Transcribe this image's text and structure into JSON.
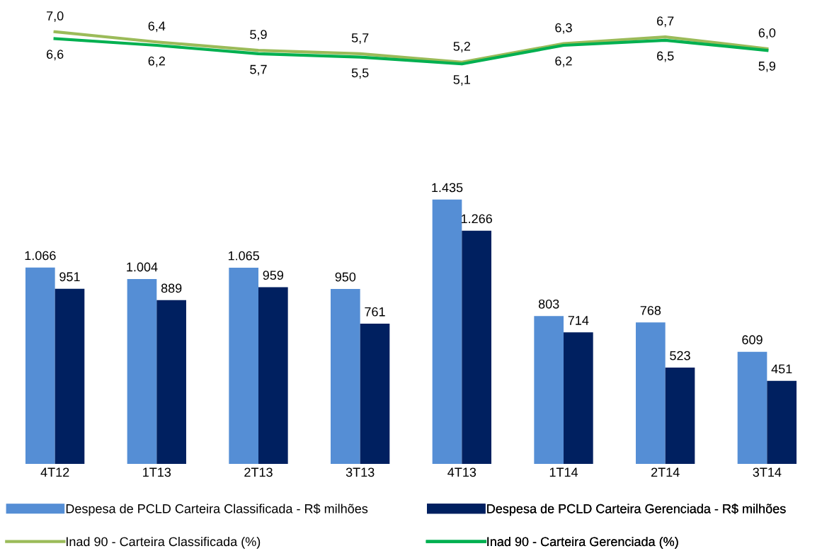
{
  "chart_data": [
    {
      "type": "line",
      "categories": [
        null,
        null,
        null,
        null,
        null,
        null,
        null,
        null
      ],
      "series": [
        {
          "name": "Inad 90 - Carteira Classificada (%)",
          "color": "#9bbb59",
          "values": [
            7.0,
            6.4,
            5.9,
            5.7,
            5.2,
            6.3,
            6.7,
            6.0
          ],
          "value_labels": [
            "7,0",
            "6,4",
            "5,9",
            "5,7",
            "5,2",
            "6,3",
            "6,7",
            "6,0"
          ]
        },
        {
          "name": "Inad 90 - Carteira Gerenciada (%)",
          "color": "#00b050",
          "values": [
            6.6,
            6.2,
            5.7,
            5.5,
            5.1,
            6.2,
            6.5,
            5.9
          ],
          "value_labels": [
            "6,6",
            "6,2",
            "5,7",
            "5,5",
            "5,1",
            "6,2",
            "6,5",
            "5,9"
          ]
        }
      ],
      "tick_labels": false,
      "grid": false,
      "legend": "bottom",
      "marker": "none",
      "line_style": "solid"
    },
    {
      "type": "bar",
      "categories": [
        "4T12",
        "1T13",
        "2T13",
        "3T13",
        "4T13",
        "1T14",
        "2T14",
        "3T14"
      ],
      "series": [
        {
          "name": "Despesa de PCLD Carteira Classificada - R$ milhões",
          "color": "#558ed5",
          "values": [
            1066,
            1004,
            1065,
            950,
            1435,
            803,
            768,
            609
          ],
          "value_labels": [
            "1.066",
            "1.004",
            "1.065",
            "950",
            "1.435",
            "803",
            "768",
            "609"
          ]
        },
        {
          "name": "Despesa de PCLD Carteira Gerenciada - R$ milhões",
          "color": "#002060",
          "values": [
            951,
            889,
            959,
            761,
            1266,
            714,
            523,
            451
          ],
          "value_labels": [
            "951",
            "889",
            "959",
            "761",
            "1.266",
            "714",
            "523",
            "451"
          ]
        }
      ],
      "tick_labels": "x",
      "grid": false,
      "legend": "bottom"
    }
  ]
}
